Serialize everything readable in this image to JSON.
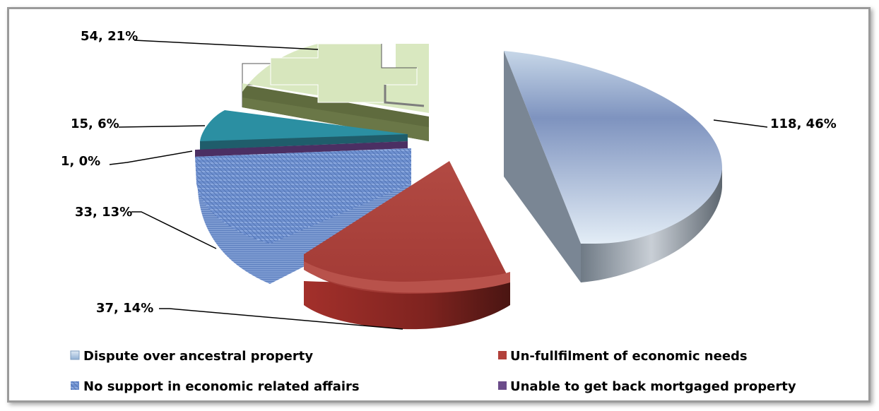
{
  "chart_data": {
    "type": "pie",
    "title": "",
    "slices": [
      {
        "name": "Dispute over ancestral property",
        "value": 118,
        "percent": "46%",
        "label": "118, 46%",
        "color": "#9db7d3",
        "in_legend": true
      },
      {
        "name": "Un-fullfilment of economic needs",
        "value": 37,
        "percent": "14%",
        "label": "37, 14%",
        "color": "#a9423c",
        "in_legend": true
      },
      {
        "name": "No support in economic related affairs",
        "value": 33,
        "percent": "13%",
        "label": "33, 13%",
        "color": "#6b8ccc",
        "in_legend": true
      },
      {
        "name": "Unable to get back mortgaged property",
        "value": 1,
        "percent": "0%",
        "label": "1, 0%",
        "color": "#5b3f72",
        "in_legend": true
      },
      {
        "name": "",
        "value": 15,
        "percent": "6%",
        "label": "15, 6%",
        "color": "#2e8b9c",
        "in_legend": false
      },
      {
        "name": "",
        "value": 54,
        "percent": "21%",
        "label": "54, 21%",
        "color": "#d4e3b4",
        "in_legend": false
      }
    ],
    "legend_position": "bottom"
  }
}
